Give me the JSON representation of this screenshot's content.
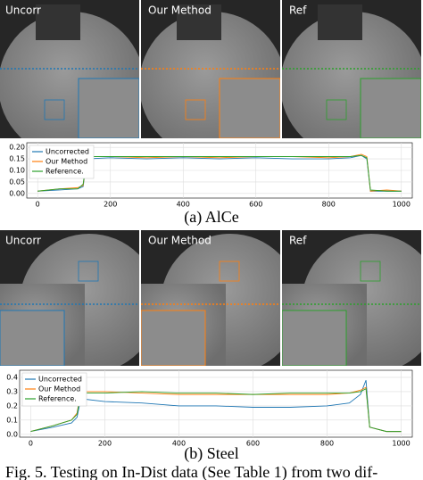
{
  "panels": [
    {
      "images": [
        {
          "label": "Uncorr"
        },
        {
          "label": "Our Method"
        },
        {
          "label": "Ref"
        }
      ],
      "caption": "(a) AlCe",
      "chart_data": {
        "type": "line",
        "x": [
          0,
          60,
          110,
          125,
          135,
          200,
          300,
          400,
          500,
          600,
          700,
          800,
          860,
          890,
          905,
          915,
          960,
          1000
        ],
        "series": [
          {
            "name": "Uncorrected",
            "color": "#1f77b4",
            "values": [
              0.01,
              0.015,
              0.02,
              0.03,
              0.15,
              0.155,
              0.15,
              0.155,
              0.15,
              0.155,
              0.15,
              0.15,
              0.155,
              0.165,
              0.15,
              0.01,
              0.01,
              0.01
            ]
          },
          {
            "name": "Our Method",
            "color": "#ff7f0e",
            "values": [
              0.01,
              0.02,
              0.025,
              0.035,
              0.16,
              0.16,
              0.155,
              0.16,
              0.155,
              0.16,
              0.16,
              0.155,
              0.16,
              0.17,
              0.16,
              0.01,
              0.015,
              0.01
            ]
          },
          {
            "name": "Reference.",
            "color": "#2ca02c",
            "values": [
              0.01,
              0.02,
              0.02,
              0.04,
              0.16,
              0.16,
              0.16,
              0.16,
              0.16,
              0.16,
              0.16,
              0.16,
              0.16,
              0.165,
              0.155,
              0.015,
              0.01,
              0.01
            ]
          }
        ],
        "xlim": [
          -30,
          1030
        ],
        "xticks": [
          0,
          200,
          400,
          600,
          800,
          1000
        ],
        "ylim": [
          -0.02,
          0.22
        ],
        "yticks": [
          {
            "value": 0,
            "label": "0.00"
          },
          {
            "value": 0.05,
            "label": "0.05"
          },
          {
            "value": 0.1,
            "label": "0.10"
          },
          {
            "value": 0.15,
            "label": "0.15"
          },
          {
            "value": 0.2,
            "label": "0.20"
          }
        ],
        "legend": "upper left",
        "grid": true
      }
    },
    {
      "images": [
        {
          "label": "Uncorr"
        },
        {
          "label": "Our Method"
        },
        {
          "label": "Ref"
        }
      ],
      "caption": "(b) Steel",
      "chart_data": {
        "type": "line",
        "x": [
          0,
          60,
          110,
          125,
          135,
          200,
          300,
          400,
          500,
          600,
          700,
          800,
          860,
          890,
          905,
          915,
          960,
          1000
        ],
        "series": [
          {
            "name": "Uncorrected",
            "color": "#1f77b4",
            "values": [
              0.02,
              0.05,
              0.08,
              0.12,
              0.25,
              0.23,
              0.22,
              0.2,
              0.2,
              0.19,
              0.19,
              0.2,
              0.22,
              0.28,
              0.38,
              0.05,
              0.02,
              0.02
            ]
          },
          {
            "name": "Our Method",
            "color": "#ff7f0e",
            "values": [
              0.02,
              0.06,
              0.1,
              0.15,
              0.3,
              0.3,
              0.29,
              0.28,
              0.28,
              0.28,
              0.28,
              0.28,
              0.29,
              0.31,
              0.33,
              0.05,
              0.02,
              0.02
            ]
          },
          {
            "name": "Reference.",
            "color": "#2ca02c",
            "values": [
              0.02,
              0.06,
              0.1,
              0.14,
              0.29,
              0.29,
              0.3,
              0.29,
              0.29,
              0.28,
              0.29,
              0.29,
              0.29,
              0.3,
              0.32,
              0.05,
              0.02,
              0.02
            ]
          }
        ],
        "xlim": [
          -30,
          1030
        ],
        "xticks": [
          0,
          200,
          400,
          600,
          800,
          1000
        ],
        "ylim": [
          -0.02,
          0.45
        ],
        "yticks": [
          {
            "value": 0,
            "label": "0.0"
          },
          {
            "value": 0.1,
            "label": "0.1"
          },
          {
            "value": 0.2,
            "label": "0.2"
          },
          {
            "value": 0.3,
            "label": "0.3"
          },
          {
            "value": 0.4,
            "label": "0.4"
          }
        ],
        "legend": "upper left",
        "grid": true
      }
    }
  ],
  "caption": "Fig. 5. Testing on In-Dist data (See Table 1) from two dif-"
}
